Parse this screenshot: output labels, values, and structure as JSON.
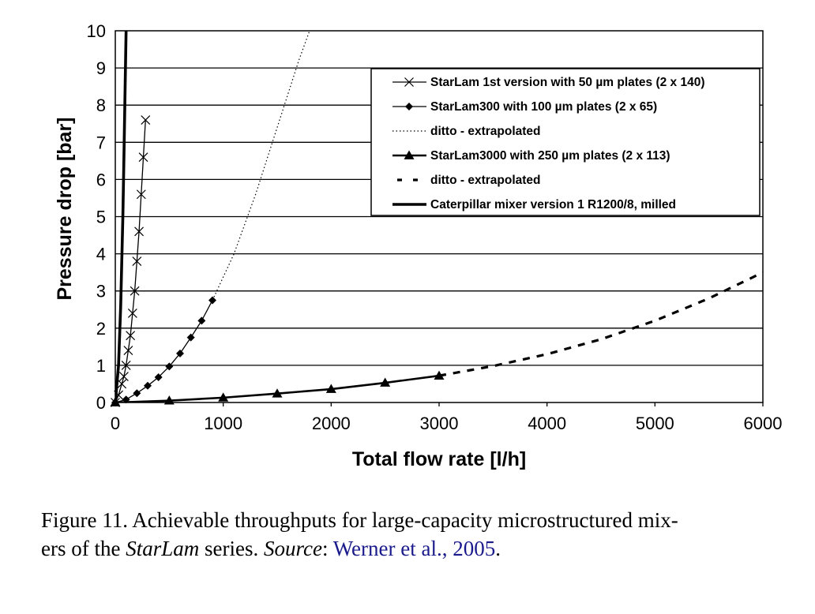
{
  "chart_data": {
    "type": "line",
    "xlabel": "Total flow rate [l/h]",
    "ylabel": "Pressure drop [bar]",
    "xlim": [
      0,
      6000
    ],
    "ylim": [
      0,
      10
    ],
    "xticks": [
      "0",
      "1000",
      "2000",
      "3000",
      "4000",
      "5000",
      "6000"
    ],
    "yticks": [
      "0",
      "1",
      "2",
      "3",
      "4",
      "5",
      "6",
      "7",
      "8",
      "9",
      "10"
    ],
    "grid": "horizontal",
    "legend_position": "top-right",
    "series": [
      {
        "name": "StarLam 1st version with 50 µm plates (2 x 140)",
        "marker": "x",
        "line": "solid-thin",
        "x": [
          0,
          30,
          60,
          80,
          100,
          120,
          140,
          160,
          180,
          200,
          220,
          240,
          260,
          280
        ],
        "y": [
          0,
          0.2,
          0.5,
          0.7,
          1.0,
          1.4,
          1.8,
          2.4,
          3.0,
          3.8,
          4.6,
          5.6,
          6.6,
          7.6
        ]
      },
      {
        "name": "StarLam300 with 100 µm plates (2 x 65)",
        "marker": "diamond",
        "line": "solid-thin",
        "x": [
          0,
          100,
          200,
          300,
          400,
          500,
          600,
          700,
          800,
          900
        ],
        "y": [
          0,
          0.08,
          0.25,
          0.45,
          0.68,
          0.97,
          1.32,
          1.75,
          2.2,
          2.75
        ]
      },
      {
        "name": "ditto - extrapolated",
        "marker": "none",
        "line": "dotted",
        "x": [
          900,
          1100,
          1300,
          1500,
          1700,
          1800
        ],
        "y": [
          2.75,
          4.0,
          5.6,
          7.4,
          9.2,
          10.0
        ]
      },
      {
        "name": "StarLam3000 with 250 µm plates (2 x 113)",
        "marker": "triangle",
        "line": "solid-thick",
        "x": [
          0,
          500,
          1000,
          1500,
          2000,
          2500,
          3000
        ],
        "y": [
          0,
          0.05,
          0.13,
          0.24,
          0.36,
          0.53,
          0.72
        ]
      },
      {
        "name": "ditto - extrapolated",
        "marker": "none",
        "line": "dashed-thick",
        "x": [
          3000,
          3500,
          4000,
          4500,
          5000,
          5500,
          6000
        ],
        "y": [
          0.72,
          0.98,
          1.3,
          1.7,
          2.2,
          2.8,
          3.5
        ]
      },
      {
        "name": "Caterpillar mixer version 1 R1200/8, milled",
        "marker": "none",
        "line": "solid-heavy",
        "x": [
          0,
          30,
          50,
          70,
          80,
          90,
          100
        ],
        "y": [
          0,
          1.0,
          2.6,
          5.0,
          6.6,
          8.3,
          10.0
        ]
      }
    ]
  },
  "caption": {
    "prefix": "Figure 11. Achievable throughputs for large-capacity microstructured mix-",
    "line2_start": "ers of the ",
    "italic_name": "StarLam",
    "middle": " series. ",
    "source_label": "Source",
    "colon": ": ",
    "reference": "Werner et al., 2005",
    "end": "."
  }
}
